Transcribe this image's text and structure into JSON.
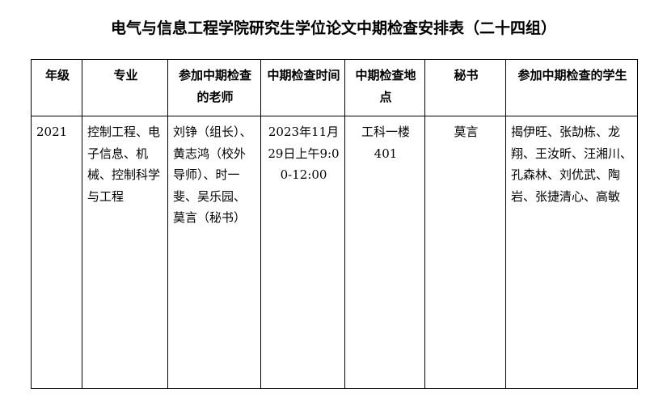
{
  "title": "电气与信息工程学院研究生学位论文中期检查安排表（二十四组）",
  "headers": [
    "年级",
    "专业",
    "参加中期检查的老师",
    "中期检查时间",
    "中期检查地点",
    "秘书",
    "参加中期检查的学生"
  ],
  "row": {
    "grade": "2021",
    "major": "控制工程、电子信息、机械、控制科学与工程",
    "teachers": "刘铮（组长）、黄志鸿（校外导师）、时一斐、吴乐园、莫言（秘书）",
    "time": "2023年11月29日上午9:00-12:00",
    "location": "工科一楼401",
    "secretary": "莫言",
    "students": "揭伊旺、张劼栋、龙翔、王汝昕、汪湘川、孔森林、刘优武、陶岩、张捷清心、高敏"
  }
}
